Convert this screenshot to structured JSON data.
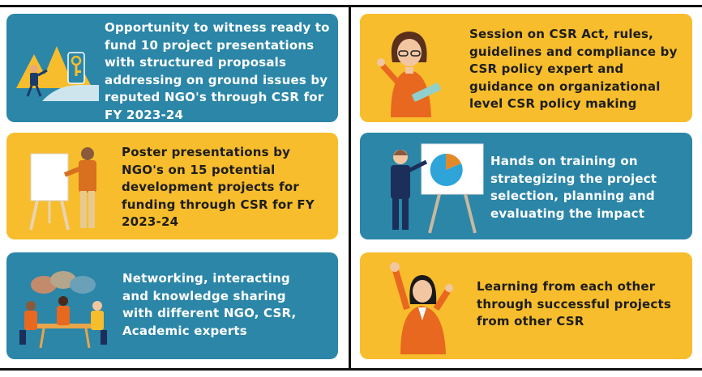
{
  "cards": [
    {
      "text": "Opportunity to witness ready to fund 10 project presentations with structured proposals addressing on ground issues by reputed NGO's through CSR for FY 2023-24",
      "icon": "presentation-key-icon"
    },
    {
      "text": "Session on CSR Act, rules, guidelines and compliance by CSR policy expert and guidance on organizational level CSR policy making",
      "icon": "expert-woman-icon"
    },
    {
      "text": "Poster presentations by NGO's on 15 potential development projects for funding through CSR for FY 2023-24",
      "icon": "poster-presenter-icon"
    },
    {
      "text": "Hands on training on strategizing the project selection, planning and evaluating the impact",
      "icon": "trainer-chart-icon"
    },
    {
      "text": "Networking, interacting and knowledge sharing with different NGO, CSR, Academic experts",
      "icon": "networking-people-icon"
    },
    {
      "text": "Learning from each other through successful projects from other CSR",
      "icon": "celebrating-woman-icon"
    }
  ],
  "colors": {
    "blue": "#2b86a8",
    "yellow": "#f7bd2c",
    "border": "#111111"
  }
}
